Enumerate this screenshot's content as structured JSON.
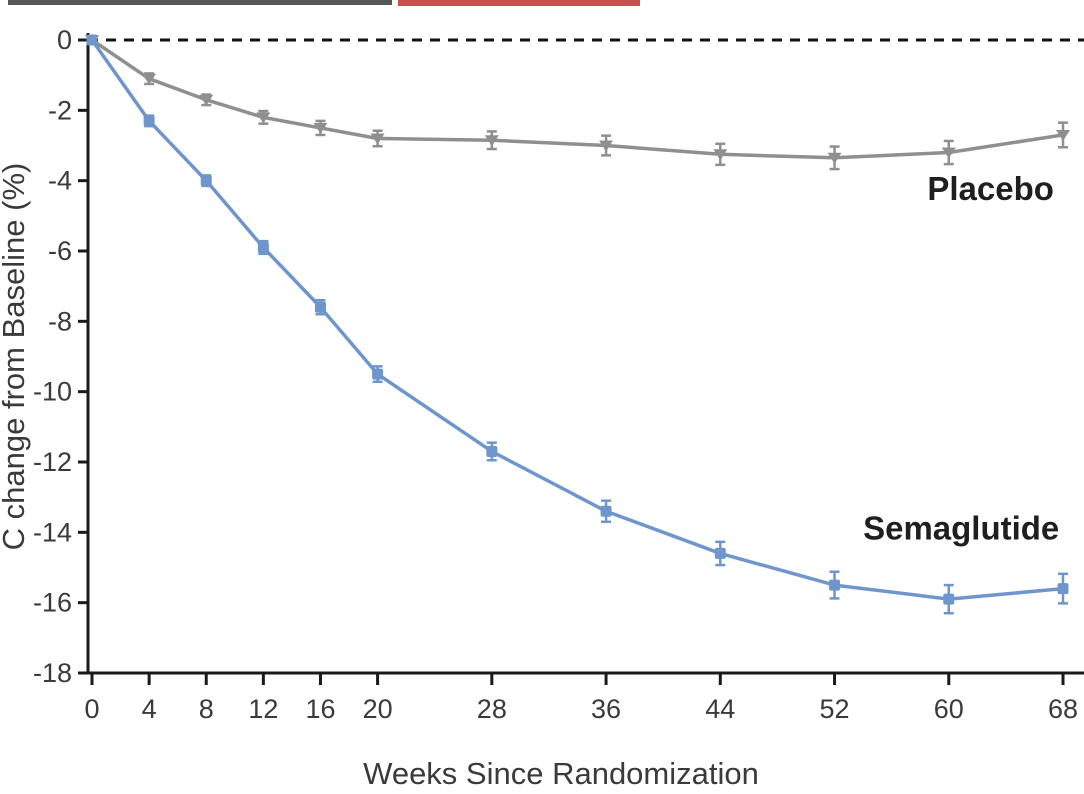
{
  "figure": {
    "x_axis_label": "Weeks Since Randomization",
    "y_axis_label": "C change from Baseline (%)"
  },
  "colors": {
    "semaglutide": "#6e96cc",
    "placebo": "#8f8f8f",
    "axis": "#1a1a1a",
    "tick_text": "#3a3a3a",
    "annotation_text": "#1f1f1f",
    "baseline_dash": "#111111",
    "cropped_fragment_dark": "#3a3a3a",
    "cropped_fragment_red": "#c43b3b"
  },
  "chart_data": {
    "type": "line",
    "x": [
      0,
      4,
      8,
      12,
      16,
      20,
      28,
      36,
      44,
      52,
      60,
      68
    ],
    "xticks": [
      0,
      4,
      8,
      12,
      16,
      20,
      28,
      36,
      44,
      52,
      60,
      68
    ],
    "yticks": [
      0,
      -2,
      -4,
      -6,
      -8,
      -10,
      -12,
      -14,
      -16,
      -18
    ],
    "ylim": [
      -18,
      0
    ],
    "xlabel": "Weeks Since Randomization",
    "ylabel": "C change from Baseline (%)",
    "grid": false,
    "baseline": {
      "y": 0,
      "style": "dashed"
    },
    "series": [
      {
        "name": "Placebo",
        "color": "#8f8f8f",
        "marker": "triangle-down",
        "values": [
          0,
          -1.1,
          -1.7,
          -2.2,
          -2.5,
          -2.8,
          -2.85,
          -3.0,
          -3.25,
          -3.35,
          -3.2,
          -2.7
        ],
        "errors": [
          0.1,
          0.15,
          0.15,
          0.18,
          0.2,
          0.22,
          0.25,
          0.28,
          0.3,
          0.32,
          0.33,
          0.35
        ]
      },
      {
        "name": "Semaglutide",
        "color": "#6e96cc",
        "marker": "square",
        "values": [
          0,
          -2.3,
          -4.0,
          -5.9,
          -7.6,
          -9.5,
          -11.7,
          -13.4,
          -14.6,
          -15.5,
          -15.9,
          -15.6
        ],
        "errors": [
          0.1,
          0.15,
          0.15,
          0.18,
          0.2,
          0.22,
          0.25,
          0.3,
          0.33,
          0.38,
          0.4,
          0.42
        ]
      }
    ],
    "annotations": [
      {
        "text": "Placebo",
        "week": 58.5,
        "value": -4.55,
        "color": "#1f1f1f"
      },
      {
        "text": "Semaglutide",
        "week": 54.0,
        "value": -14.2,
        "color": "#1f1f1f"
      }
    ]
  }
}
